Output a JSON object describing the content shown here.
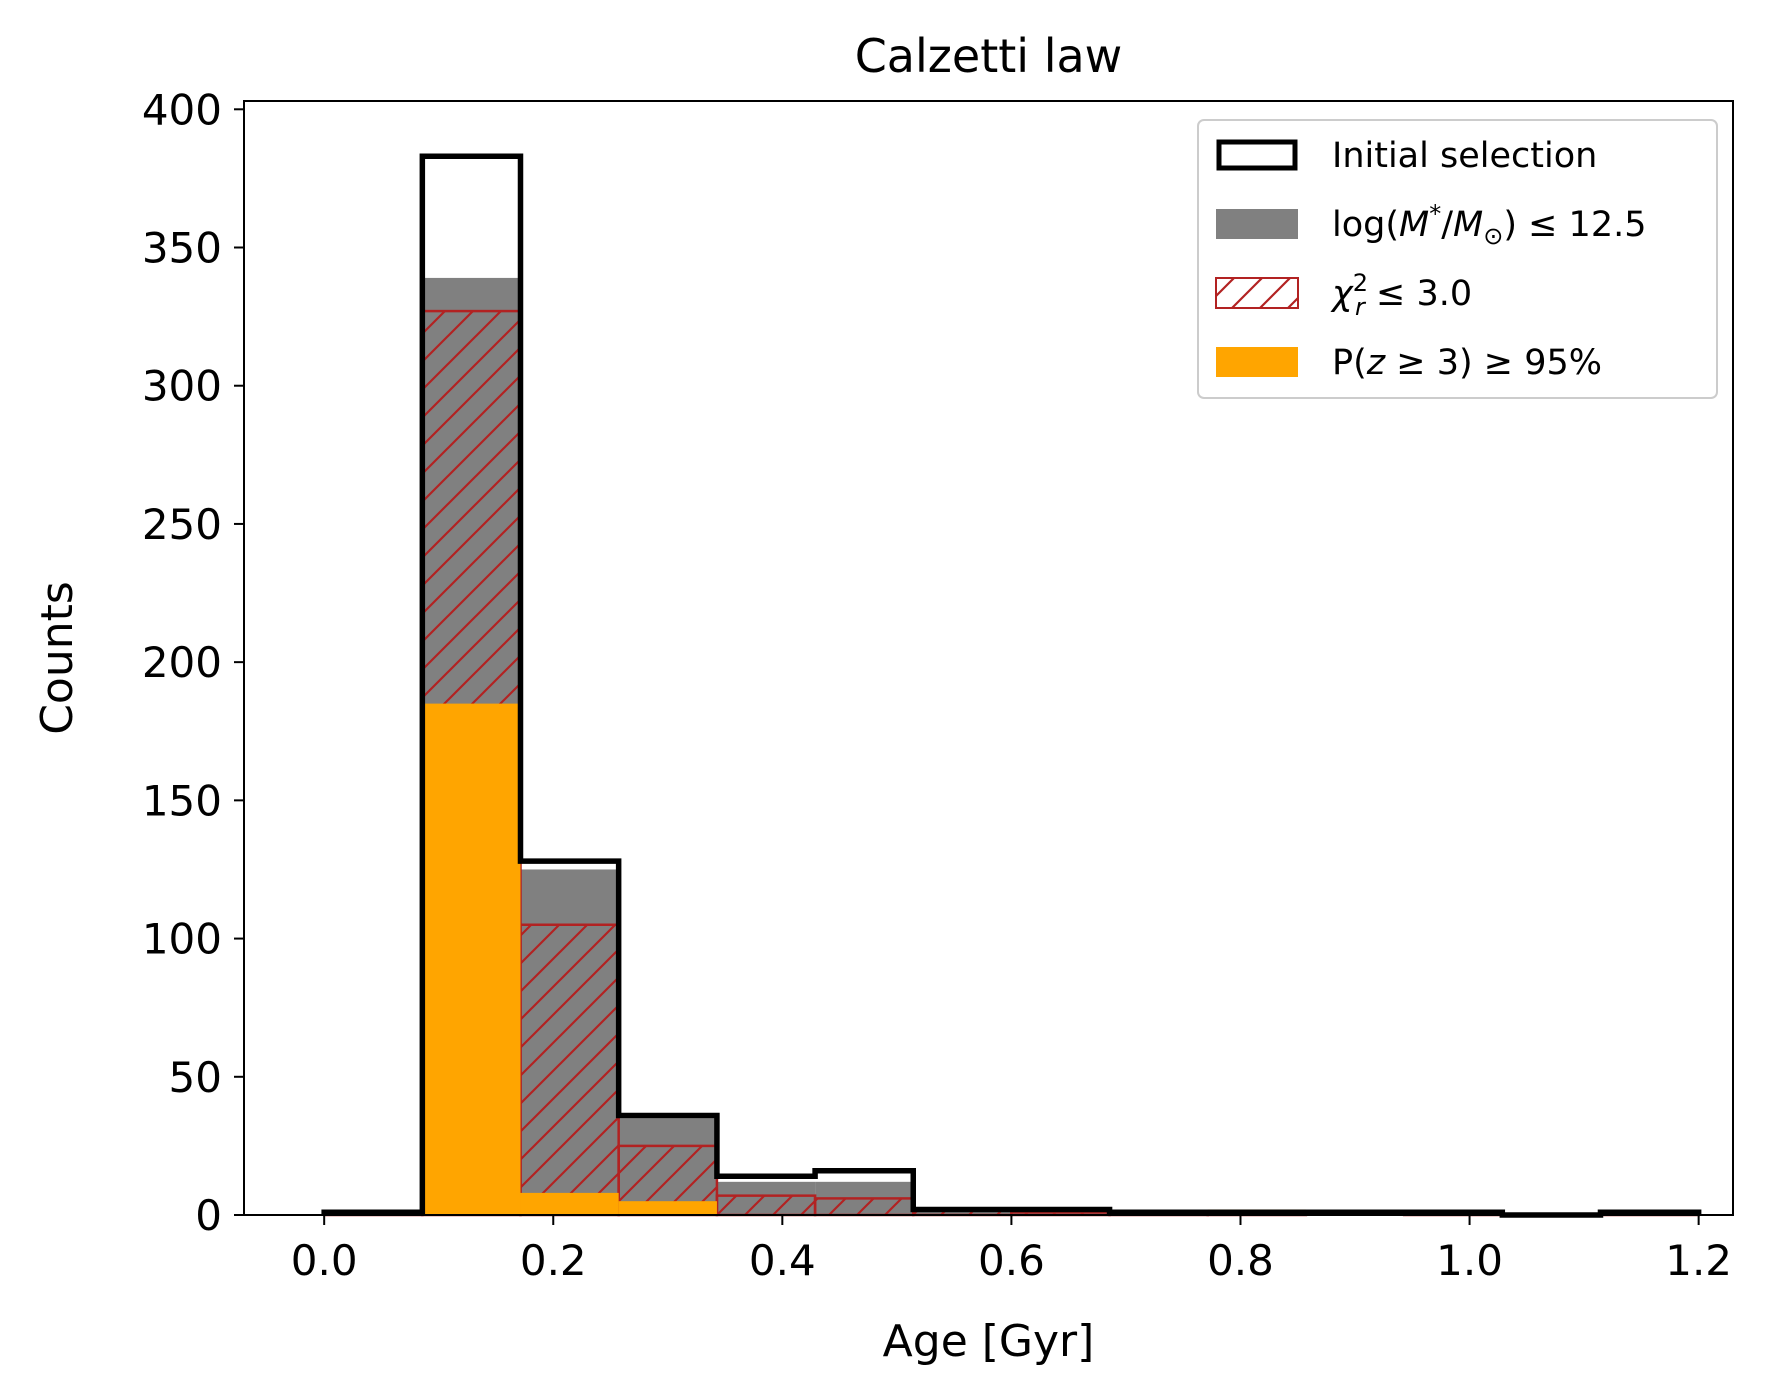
{
  "chart_data": {
    "type": "histogram",
    "title": "Calzetti law",
    "xlabel": "Age [Gyr]",
    "ylabel": "Counts",
    "xlim": [
      -0.07,
      1.23
    ],
    "ylim": [
      0,
      403
    ],
    "xticks": [
      0.0,
      0.2,
      0.4,
      0.6,
      0.8,
      1.0,
      1.2
    ],
    "xtick_labels": [
      "0.0",
      "0.2",
      "0.4",
      "0.6",
      "0.8",
      "1.0",
      "1.2"
    ],
    "yticks": [
      0,
      50,
      100,
      150,
      200,
      250,
      300,
      350,
      400
    ],
    "ytick_labels": [
      "0",
      "50",
      "100",
      "150",
      "200",
      "250",
      "300",
      "350",
      "400"
    ],
    "bin_edges": [
      0.0,
      0.0857,
      0.1714,
      0.2571,
      0.3429,
      0.4286,
      0.5143,
      0.6,
      0.6857,
      0.7714,
      0.8571,
      0.9429,
      1.0286,
      1.1143,
      1.2
    ],
    "series": [
      {
        "name": "Initial selection",
        "style": "step",
        "color": "#000000",
        "values": [
          1,
          383,
          128,
          36,
          14,
          16,
          2,
          2,
          1,
          1,
          1,
          1,
          0,
          1
        ]
      },
      {
        "name": "log(M*/M⊙) ≤ 12.5",
        "style": "filled",
        "color": "#808080",
        "values": [
          1,
          339,
          125,
          35,
          12,
          12,
          2,
          2,
          1,
          1,
          1,
          1,
          0,
          1
        ]
      },
      {
        "name": "χr² ≤ 3.0",
        "style": "hatched",
        "color": "#b22222",
        "values": [
          1,
          327,
          105,
          25,
          7,
          6,
          2,
          1,
          1,
          1,
          0,
          1,
          0,
          1
        ]
      },
      {
        "name": "P(z ≥ 3) ≥ 95%",
        "style": "filled",
        "color": "#ffa500",
        "values": [
          0,
          185,
          8,
          5,
          0,
          0,
          0,
          0,
          0,
          2,
          0,
          1,
          0,
          0
        ]
      }
    ],
    "legend": {
      "position": "top-right",
      "entries": [
        {
          "label": "Initial selection"
        },
        {
          "main": "log(",
          "italic": "M",
          "sup": "*",
          "mid": "/",
          "italic2": "M",
          "sub": "⊙",
          "end": ") ≤ 12.5"
        },
        {
          "italic": "χ",
          "sup": "2",
          "sub": "r",
          "end": " ≤ 3.0"
        },
        {
          "main": "P(",
          "italic": "z",
          "end": " ≥ 3) ≥ 95%"
        }
      ]
    }
  }
}
